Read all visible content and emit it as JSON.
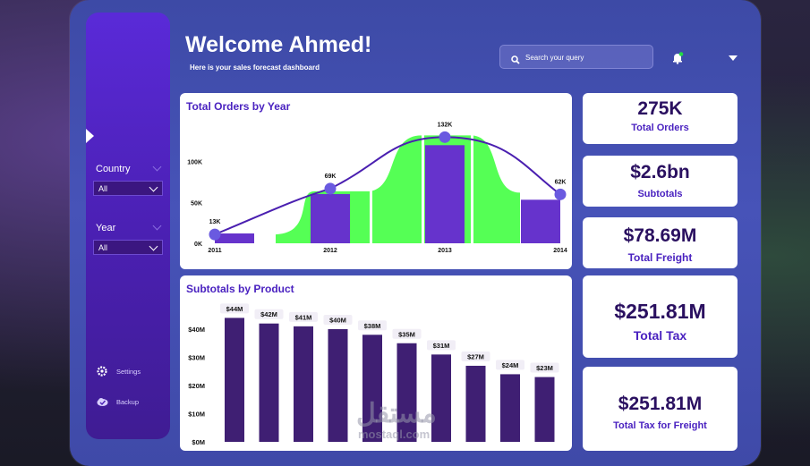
{
  "header": {
    "title": "Welcome Ahmed!",
    "subtitle": "Here is your sales forecast dashboard",
    "search_placeholder": "Search your query"
  },
  "sidebar": {
    "filters": [
      {
        "label": "Country",
        "value": "All"
      },
      {
        "label": "Year",
        "value": "All"
      }
    ],
    "items": [
      {
        "label": "Settings",
        "icon": "gear-icon"
      },
      {
        "label": "Backup",
        "icon": "cloud-icon"
      }
    ]
  },
  "kpis": [
    {
      "value": "275K",
      "label": "Total Orders"
    },
    {
      "value": "$2.6bn",
      "label": "Subtotals"
    },
    {
      "value": "$78.69M",
      "label": "Total Freight"
    },
    {
      "value": "$251.81M",
      "label": "Total Tax"
    },
    {
      "value": "$251.81M",
      "label": "Total Tax for Freight"
    }
  ],
  "watermark": {
    "arabic": "مستقل",
    "latin": "mostaql.com"
  },
  "colors": {
    "accent": "#5b32d6",
    "bar_purple": "#6633cc",
    "area_green": "#55ff55",
    "product_bar": "#3f1f73",
    "line": "#4a1fb0"
  },
  "chart_data": [
    {
      "type": "bar",
      "title": "Total Orders by Year",
      "categories": [
        "2011",
        "2012",
        "2013",
        "2014"
      ],
      "values": [
        13,
        69,
        132,
        62
      ],
      "data_labels": [
        "13K",
        "69K",
        "132K",
        "62K"
      ],
      "series": [
        {
          "values": [
            13,
            69,
            132,
            62
          ]
        }
      ],
      "y_ticks": [
        "0K",
        "50K",
        "100K"
      ],
      "ylim": [
        0,
        140
      ],
      "overlay": "line with markers and green area"
    },
    {
      "type": "bar",
      "title": "Subtotals by Product",
      "values": [
        44,
        42,
        41,
        40,
        38,
        35,
        31,
        27,
        24,
        23
      ],
      "data_labels": [
        "$44M",
        "$42M",
        "$41M",
        "$40M",
        "$38M",
        "$35M",
        "$31M",
        "$27M",
        "$24M",
        "$23M"
      ],
      "y_ticks": [
        "$0M",
        "$10M",
        "$20M",
        "$30M",
        "$40M"
      ],
      "ylim": [
        0,
        48
      ]
    }
  ]
}
